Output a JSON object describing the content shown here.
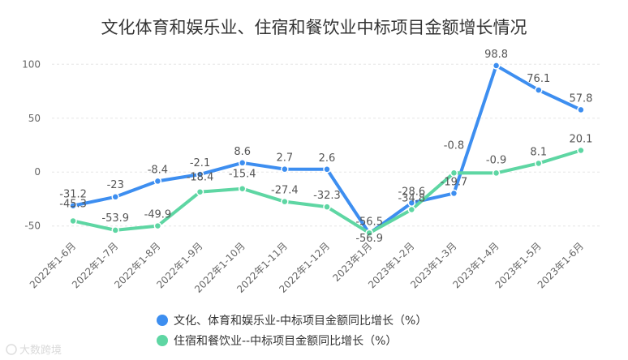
{
  "chart_data": {
    "type": "line",
    "title": "文化体育和娱乐业、住宿和餐饮业中标项目金额增长情况",
    "categories": [
      "2022年1-6月",
      "2022年1-7月",
      "2022年1-8月",
      "2022年1-9月",
      "2022年1-10月",
      "2022年1-11月",
      "2022年1-12月",
      "2023年1月",
      "2023年1-2月",
      "2023年1-3月",
      "2023年1-4月",
      "2023年1-5月",
      "2023年1-6月"
    ],
    "ylim": [
      -60,
      110
    ],
    "yticks": [
      -50,
      0,
      50,
      100
    ],
    "grid": true,
    "legend_position": "bottom",
    "series": [
      {
        "name": "文化、体育和娱乐业-中标项目金额同比增长（%）",
        "color": "#3d8ef0",
        "values": [
          -31.2,
          -23,
          -8.4,
          -2.1,
          8.6,
          2.7,
          2.6,
          -56.9,
          -28.6,
          -19.7,
          98.8,
          76.1,
          57.8
        ],
        "labels": [
          "-31.2",
          "-23",
          "-8.4",
          "-2.1",
          "8.6",
          "2.7",
          "2.6",
          "-56.9",
          "-28.6",
          "-19.7",
          "98.8",
          "76.1",
          "57.8"
        ]
      },
      {
        "name": "住宿和餐饮业--中标项目金额同比增长（%）",
        "color": "#5ed6a3",
        "values": [
          -45.3,
          -53.9,
          -49.9,
          -18.4,
          -15.4,
          -27.4,
          -32.3,
          -56.5,
          -34.8,
          -0.8,
          -0.9,
          8.1,
          20.1
        ],
        "labels": [
          "-45.3",
          "-53.9",
          "-49.9",
          "-18.4",
          "-15.4",
          "-27.4",
          "-32.3",
          "-56.5",
          "-34.8",
          "-0.8",
          "-0.9",
          "8.1",
          "20.1"
        ]
      }
    ]
  },
  "watermark": "大数跨境"
}
